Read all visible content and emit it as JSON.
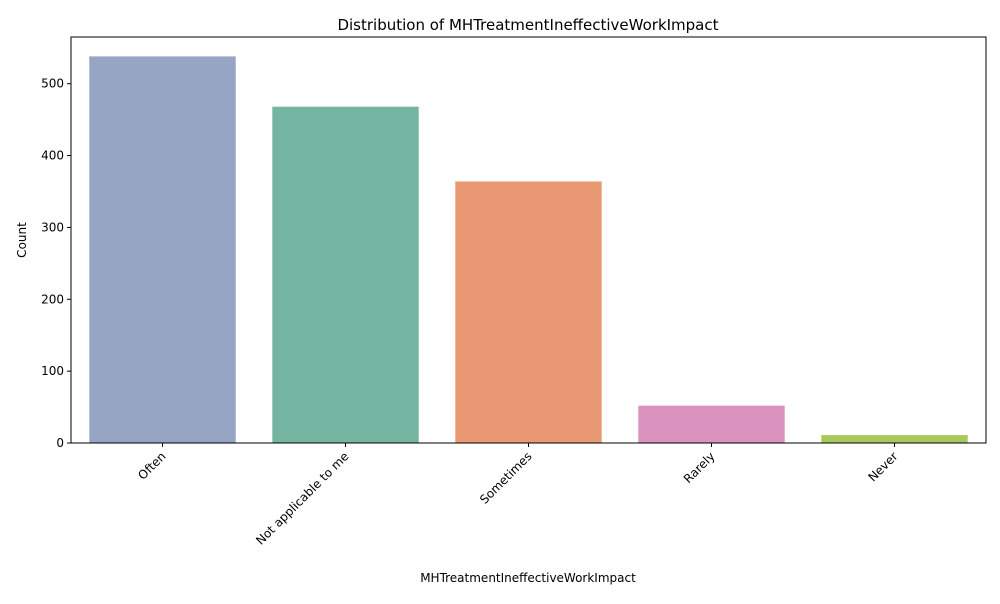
{
  "chart_data": {
    "type": "bar",
    "title": "Distribution of MHTreatmentIneffectiveWorkImpact",
    "xlabel": "MHTreatmentIneffectiveWorkImpact",
    "ylabel": "Count",
    "categories": [
      "Often",
      "Not applicable to me",
      "Sometimes",
      "Rarely",
      "Never"
    ],
    "values": [
      538,
      468,
      364,
      52,
      11
    ],
    "colors": [
      "#95a5c3",
      "#73b5a0",
      "#e99874",
      "#da93bf",
      "#a7c95a"
    ],
    "ylim": [
      0,
      565
    ],
    "yticks": [
      0,
      100,
      200,
      300,
      400,
      500
    ],
    "grid": false,
    "legend": "none"
  }
}
